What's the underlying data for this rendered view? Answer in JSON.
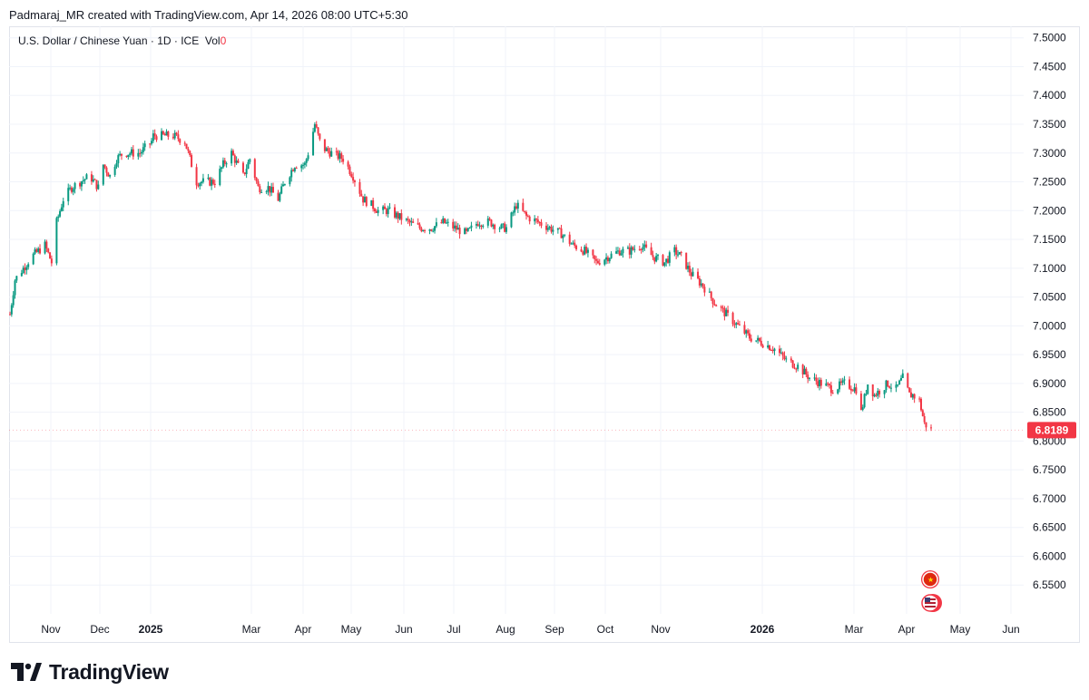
{
  "credit_line": "Padmaraj_MR created with TradingView.com, Apr 14, 2026 08:00 UTC+5:30",
  "legend": {
    "symbol_text": "U.S. Dollar / Chinese Yuan · 1D · ICE",
    "vol_label": "Vol",
    "vol_value": "0"
  },
  "brand": {
    "name": "TradingView"
  },
  "colors": {
    "up": "#089981",
    "down": "#f23645",
    "grid": "#f0f3fa",
    "text": "#131722"
  },
  "icons": [
    "china-flag-icon",
    "us-flag-icon",
    "tradingview-logo-icon"
  ],
  "chart_data": {
    "type": "candlestick",
    "title": "U.S. Dollar / Chinese Yuan · 1D · ICE",
    "ylim": [
      6.5,
      7.52
    ],
    "y_ticks": [
      "7.5000",
      "7.4500",
      "7.4000",
      "7.3500",
      "7.3000",
      "7.2500",
      "7.2000",
      "7.1500",
      "7.1000",
      "7.0500",
      "7.0000",
      "6.9500",
      "6.9000",
      "6.8500",
      "6.8000",
      "6.7500",
      "6.7000",
      "6.6500",
      "6.6000",
      "6.5500"
    ],
    "x_ticks": [
      {
        "label": "Nov",
        "bold": false
      },
      {
        "label": "Dec",
        "bold": false
      },
      {
        "label": "2025",
        "bold": true
      },
      {
        "label": "Mar",
        "bold": false
      },
      {
        "label": "Apr",
        "bold": false
      },
      {
        "label": "May",
        "bold": false
      },
      {
        "label": "Jun",
        "bold": false
      },
      {
        "label": "Jul",
        "bold": false
      },
      {
        "label": "Aug",
        "bold": false
      },
      {
        "label": "Sep",
        "bold": false
      },
      {
        "label": "Oct",
        "bold": false
      },
      {
        "label": "Nov",
        "bold": false
      },
      {
        "label": "2026",
        "bold": true
      },
      {
        "label": "Mar",
        "bold": false
      },
      {
        "label": "Apr",
        "bold": false
      },
      {
        "label": "May",
        "bold": false
      },
      {
        "label": "Jun",
        "bold": false
      }
    ],
    "last_price": "6.8189",
    "path_dates": [
      "2024-10-07",
      "2024-10-10",
      "2024-10-15",
      "2024-10-20",
      "2024-10-24",
      "2024-10-28",
      "2024-11-01",
      "2024-11-04",
      "2024-11-08",
      "2024-11-13",
      "2024-11-18",
      "2024-11-24",
      "2024-11-29",
      "2024-12-02",
      "2024-12-06",
      "2024-12-10",
      "2024-12-14",
      "2024-12-19",
      "2024-12-24",
      "2024-12-31",
      "2025-01-01",
      "2025-01-06",
      "2025-01-13",
      "2025-01-20",
      "2025-01-27",
      "2025-02-03",
      "2025-02-07",
      "2025-02-12",
      "2025-02-17",
      "2025-02-24",
      "2025-02-28",
      "2025-03-05",
      "2025-03-11",
      "2025-03-17",
      "2025-03-21",
      "2025-03-27",
      "2025-04-02",
      "2025-04-04",
      "2025-04-08",
      "2025-04-09",
      "2025-04-12",
      "2025-04-18",
      "2025-04-25",
      "2025-05-01",
      "2025-05-07",
      "2025-05-12",
      "2025-05-16",
      "2025-05-22",
      "2025-05-28",
      "2025-06-03",
      "2025-06-10",
      "2025-06-17",
      "2025-06-24",
      "2025-07-01",
      "2025-07-08",
      "2025-07-15",
      "2025-07-22",
      "2025-07-29",
      "2025-08-01",
      "2025-08-04",
      "2025-08-07",
      "2025-08-13",
      "2025-08-20",
      "2025-08-27",
      "2025-09-03",
      "2025-09-10",
      "2025-09-17",
      "2025-09-24",
      "2025-10-01",
      "2025-10-08",
      "2025-10-14",
      "2025-10-21",
      "2025-10-28",
      "2025-11-04",
      "2025-11-10",
      "2025-11-14",
      "2025-11-20",
      "2025-11-27",
      "2025-12-04",
      "2025-12-11",
      "2025-12-18",
      "2025-12-25",
      "2026-01-02",
      "2026-01-09",
      "2026-01-16",
      "2026-01-23",
      "2026-01-30",
      "2026-02-06",
      "2026-02-13",
      "2026-02-20",
      "2026-02-27",
      "2026-03-02",
      "2026-03-06",
      "2026-03-10",
      "2026-03-14",
      "2026-03-18",
      "2026-03-23",
      "2026-03-27",
      "2026-03-31",
      "2026-04-02",
      "2026-04-06",
      "2026-04-09",
      "2026-04-13"
    ],
    "path_values": [
      7.02,
      7.08,
      7.1,
      7.12,
      7.13,
      7.14,
      7.11,
      7.18,
      7.22,
      7.24,
      7.25,
      7.26,
      7.24,
      7.28,
      7.26,
      7.29,
      7.3,
      7.3,
      7.3,
      7.32,
      7.33,
      7.33,
      7.33,
      7.32,
      7.25,
      7.25,
      7.25,
      7.28,
      7.3,
      7.26,
      7.29,
      7.24,
      7.24,
      7.22,
      7.25,
      7.28,
      7.28,
      7.3,
      7.35,
      7.34,
      7.31,
      7.3,
      7.29,
      7.26,
      7.22,
      7.21,
      7.2,
      7.2,
      7.19,
      7.18,
      7.17,
      7.17,
      7.18,
      7.17,
      7.16,
      7.18,
      7.18,
      7.17,
      7.17,
      7.19,
      7.21,
      7.19,
      7.18,
      7.17,
      7.16,
      7.14,
      7.13,
      7.11,
      7.12,
      7.13,
      7.13,
      7.14,
      7.12,
      7.11,
      7.13,
      7.12,
      7.09,
      7.07,
      7.04,
      7.02,
      7.0,
      6.98,
      6.97,
      6.96,
      6.94,
      6.93,
      6.91,
      6.9,
      6.89,
      6.9,
      6.89,
      6.85,
      6.9,
      6.88,
      6.89,
      6.9,
      6.89,
      6.91,
      6.88,
      6.88,
      6.87,
      6.83,
      6.82
    ]
  }
}
